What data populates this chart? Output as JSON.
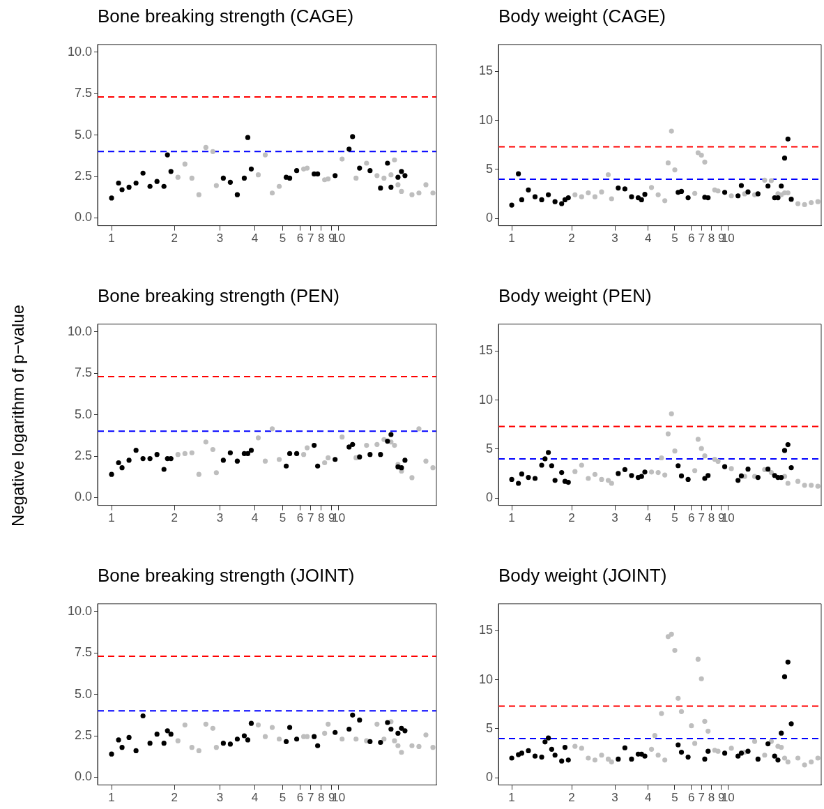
{
  "chart_data": [
    {
      "type": "scatter",
      "title": "Bone breaking strength (CAGE)",
      "ylim": [
        -0.47,
        10.46
      ],
      "categories": [
        null,
        null,
        null,
        null,
        "1",
        null,
        null,
        null,
        null,
        null,
        null,
        null,
        null,
        null,
        null,
        null,
        null,
        null,
        null,
        null,
        null,
        null,
        "2",
        null,
        null,
        null,
        null,
        null,
        null,
        null,
        null,
        null,
        null,
        null,
        null,
        "3",
        null,
        null,
        null,
        null,
        null,
        null,
        null,
        null,
        null,
        "4",
        null,
        null,
        null,
        null,
        null,
        null,
        null,
        "5",
        null,
        null,
        null,
        null,
        "6",
        null,
        null,
        "7",
        null,
        null,
        "8",
        null,
        null,
        "9",
        null,
        "10",
        null,
        null,
        null,
        null,
        null,
        null,
        null,
        null,
        null,
        null,
        null,
        null,
        null,
        null,
        null,
        null,
        null,
        null,
        null,
        null,
        null,
        null,
        null,
        null,
        null,
        null,
        null,
        null
      ],
      "yticks": [
        {
          "value": 0,
          "label": "0.0"
        },
        2.5,
        {
          "value": 5,
          "label": "5.0"
        },
        7.5,
        {
          "value": 10,
          "label": "10.0"
        }
      ],
      "grid": false,
      "legend": false,
      "marker": "circle",
      "ref_lines": [
        {
          "axis": "y",
          "value": 7.3,
          "color": "#ff0000",
          "line_style": "dashed"
        },
        {
          "axis": "y",
          "value": 4,
          "color": "#0000ff",
          "line_style": "dashed"
        }
      ],
      "series": [
        {
          "color": "#000000",
          "values": [
            null,
            null,
            null,
            null,
            1.2,
            null,
            2.1,
            1.7,
            null,
            1.85,
            null,
            2.1,
            null,
            2.7,
            null,
            1.9,
            null,
            2.2,
            null,
            1.9,
            3.8,
            2.8,
            null,
            null,
            null,
            null,
            null,
            null,
            null,
            null,
            null,
            null,
            null,
            null,
            null,
            null,
            2.4,
            null,
            2.15,
            null,
            1.4,
            null,
            2.4,
            4.85,
            2.95,
            null,
            null,
            null,
            null,
            null,
            null,
            null,
            null,
            null,
            2.45,
            2.4,
            null,
            2.85,
            null,
            null,
            null,
            null,
            2.65,
            2.65,
            null,
            null,
            null,
            null,
            2.55,
            null,
            null,
            null,
            4.15,
            4.9,
            null,
            3.0,
            null,
            null,
            2.85,
            null,
            null,
            1.8,
            null,
            3.3,
            1.85,
            null,
            2.45,
            2.8,
            2.55,
            null,
            null,
            null,
            null,
            null,
            null,
            null,
            null,
            null
          ]
        },
        {
          "color": "#bebebe",
          "values": [
            null,
            null,
            null,
            null,
            null,
            null,
            null,
            null,
            null,
            null,
            null,
            null,
            null,
            null,
            null,
            null,
            null,
            null,
            null,
            null,
            null,
            null,
            null,
            2.45,
            null,
            3.25,
            null,
            2.4,
            null,
            1.4,
            null,
            4.25,
            null,
            4.0,
            1.95,
            null,
            null,
            null,
            null,
            null,
            null,
            null,
            null,
            null,
            null,
            null,
            2.6,
            null,
            3.8,
            null,
            1.5,
            null,
            1.9,
            null,
            null,
            null,
            null,
            null,
            null,
            2.95,
            3.0,
            null,
            null,
            null,
            null,
            2.3,
            2.35,
            null,
            null,
            null,
            3.55,
            null,
            null,
            null,
            2.4,
            null,
            null,
            3.3,
            null,
            null,
            2.55,
            null,
            2.4,
            null,
            2.6,
            3.5,
            2.0,
            1.6,
            null,
            null,
            1.4,
            null,
            1.5,
            null,
            2.0,
            null,
            1.5,
            null
          ]
        }
      ]
    },
    {
      "type": "scatter",
      "title": "Body weight (CAGE)",
      "ylim": [
        -0.75,
        17.75
      ],
      "categories": [
        null,
        null,
        null,
        null,
        "1",
        null,
        null,
        null,
        null,
        null,
        null,
        null,
        null,
        null,
        null,
        null,
        null,
        null,
        null,
        null,
        null,
        null,
        "2",
        null,
        null,
        null,
        null,
        null,
        null,
        null,
        null,
        null,
        null,
        null,
        null,
        "3",
        null,
        null,
        null,
        null,
        null,
        null,
        null,
        null,
        null,
        "4",
        null,
        null,
        null,
        null,
        null,
        null,
        null,
        "5",
        null,
        null,
        null,
        null,
        "6",
        null,
        null,
        "7",
        null,
        null,
        "8",
        null,
        null,
        "9",
        null,
        "10",
        null,
        null,
        null,
        null,
        null,
        null,
        null,
        null,
        null,
        null,
        null,
        null,
        null,
        null,
        null,
        null,
        null,
        null,
        null,
        null,
        null,
        null,
        null,
        null,
        null,
        null,
        null,
        null
      ],
      "yticks": [
        0,
        5,
        10,
        15
      ],
      "grid": false,
      "legend": false,
      "marker": "circle",
      "ref_lines": [
        {
          "axis": "y",
          "value": 7.3,
          "color": "#ff0000",
          "line_style": "dashed"
        },
        {
          "axis": "y",
          "value": 4,
          "color": "#0000ff",
          "line_style": "dashed"
        }
      ],
      "series": [
        {
          "color": "#000000",
          "values": [
            null,
            null,
            null,
            null,
            1.35,
            null,
            4.55,
            1.9,
            null,
            2.9,
            null,
            2.2,
            null,
            1.9,
            null,
            2.4,
            null,
            1.7,
            null,
            1.5,
            1.9,
            2.1,
            null,
            null,
            null,
            null,
            null,
            null,
            null,
            null,
            null,
            null,
            null,
            null,
            null,
            null,
            3.1,
            null,
            3.0,
            null,
            2.2,
            null,
            2.1,
            1.9,
            2.45,
            null,
            null,
            null,
            null,
            null,
            null,
            null,
            null,
            null,
            2.65,
            2.75,
            null,
            2.1,
            null,
            null,
            null,
            null,
            2.15,
            2.1,
            null,
            null,
            null,
            null,
            2.65,
            null,
            null,
            null,
            2.3,
            3.35,
            null,
            2.7,
            null,
            null,
            2.5,
            null,
            null,
            3.3,
            null,
            2.1,
            2.1,
            3.3,
            6.15,
            8.1,
            1.95,
            null,
            null,
            null,
            null,
            null,
            null,
            null,
            null,
            null
          ]
        },
        {
          "color": "#bebebe",
          "values": [
            null,
            null,
            null,
            null,
            null,
            null,
            null,
            null,
            null,
            null,
            null,
            null,
            null,
            null,
            null,
            null,
            null,
            null,
            null,
            null,
            null,
            null,
            null,
            2.4,
            null,
            2.2,
            null,
            2.6,
            null,
            2.2,
            null,
            2.7,
            null,
            4.45,
            2.0,
            null,
            null,
            null,
            null,
            null,
            null,
            null,
            null,
            null,
            null,
            null,
            3.15,
            null,
            2.4,
            null,
            1.8,
            5.65,
            8.9,
            4.95,
            null,
            null,
            null,
            null,
            null,
            2.55,
            6.7,
            6.45,
            5.75,
            null,
            null,
            2.9,
            2.8,
            null,
            null,
            null,
            2.3,
            null,
            null,
            null,
            2.5,
            null,
            null,
            2.4,
            null,
            null,
            3.9,
            null,
            3.85,
            null,
            2.5,
            2.4,
            2.6,
            2.6,
            null,
            null,
            1.5,
            null,
            1.4,
            null,
            1.6,
            null,
            1.7,
            null
          ]
        }
      ]
    },
    {
      "type": "scatter",
      "title": "Bone breaking strength (PEN)",
      "ylabel": "Negative logarithm of p−value",
      "ylim": [
        -0.47,
        10.46
      ],
      "categories": [
        null,
        null,
        null,
        null,
        "1",
        null,
        null,
        null,
        null,
        null,
        null,
        null,
        null,
        null,
        null,
        null,
        null,
        null,
        null,
        null,
        null,
        null,
        "2",
        null,
        null,
        null,
        null,
        null,
        null,
        null,
        null,
        null,
        null,
        null,
        null,
        "3",
        null,
        null,
        null,
        null,
        null,
        null,
        null,
        null,
        null,
        "4",
        null,
        null,
        null,
        null,
        null,
        null,
        null,
        "5",
        null,
        null,
        null,
        null,
        "6",
        null,
        null,
        "7",
        null,
        null,
        "8",
        null,
        null,
        "9",
        null,
        "10",
        null,
        null,
        null,
        null,
        null,
        null,
        null,
        null,
        null,
        null,
        null,
        null,
        null,
        null,
        null,
        null,
        null,
        null,
        null,
        null,
        null,
        null,
        null,
        null,
        null,
        null,
        null,
        null
      ],
      "yticks": [
        {
          "value": 0,
          "label": "0.0"
        },
        2.5,
        {
          "value": 5,
          "label": "5.0"
        },
        7.5,
        {
          "value": 10,
          "label": "10.0"
        }
      ],
      "grid": false,
      "legend": false,
      "marker": "circle",
      "ref_lines": [
        {
          "axis": "y",
          "value": 7.3,
          "color": "#ff0000",
          "line_style": "dashed"
        },
        {
          "axis": "y",
          "value": 4,
          "color": "#0000ff",
          "line_style": "dashed"
        }
      ],
      "series": [
        {
          "color": "#000000",
          "values": [
            null,
            null,
            null,
            null,
            1.4,
            null,
            2.1,
            1.8,
            null,
            2.25,
            null,
            2.85,
            null,
            2.35,
            null,
            2.35,
            null,
            2.6,
            null,
            1.7,
            2.35,
            2.35,
            null,
            null,
            null,
            null,
            null,
            null,
            null,
            null,
            null,
            null,
            null,
            null,
            null,
            null,
            2.25,
            null,
            2.7,
            null,
            2.2,
            null,
            2.65,
            2.65,
            2.85,
            null,
            null,
            null,
            null,
            null,
            null,
            null,
            null,
            null,
            1.9,
            2.65,
            null,
            2.65,
            null,
            null,
            null,
            null,
            3.15,
            1.9,
            null,
            null,
            null,
            null,
            2.3,
            null,
            null,
            null,
            3.05,
            3.2,
            null,
            2.45,
            null,
            null,
            2.6,
            null,
            null,
            2.6,
            null,
            3.4,
            3.8,
            null,
            1.85,
            1.8,
            2.25,
            null,
            null,
            null,
            null,
            null,
            null,
            null,
            null,
            null
          ]
        },
        {
          "color": "#bebebe",
          "values": [
            null,
            null,
            null,
            null,
            null,
            null,
            null,
            null,
            null,
            null,
            null,
            null,
            null,
            null,
            null,
            null,
            null,
            null,
            null,
            null,
            null,
            null,
            null,
            2.6,
            null,
            2.65,
            null,
            2.7,
            null,
            1.4,
            null,
            3.35,
            null,
            2.9,
            1.5,
            null,
            null,
            null,
            null,
            null,
            null,
            null,
            null,
            null,
            null,
            null,
            3.6,
            null,
            2.2,
            null,
            4.15,
            null,
            2.3,
            null,
            null,
            null,
            null,
            null,
            null,
            2.6,
            3.0,
            null,
            null,
            null,
            null,
            2.1,
            2.4,
            null,
            null,
            null,
            3.65,
            null,
            null,
            null,
            2.4,
            null,
            null,
            3.15,
            null,
            null,
            3.2,
            null,
            3.5,
            null,
            3.35,
            3.15,
            2.0,
            1.6,
            null,
            null,
            1.2,
            null,
            4.15,
            null,
            2.2,
            null,
            1.8,
            null
          ]
        }
      ]
    },
    {
      "type": "scatter",
      "title": "Body weight (PEN)",
      "ylim": [
        -0.75,
        17.75
      ],
      "categories": [
        null,
        null,
        null,
        null,
        "1",
        null,
        null,
        null,
        null,
        null,
        null,
        null,
        null,
        null,
        null,
        null,
        null,
        null,
        null,
        null,
        null,
        null,
        "2",
        null,
        null,
        null,
        null,
        null,
        null,
        null,
        null,
        null,
        null,
        null,
        null,
        "3",
        null,
        null,
        null,
        null,
        null,
        null,
        null,
        null,
        null,
        "4",
        null,
        null,
        null,
        null,
        null,
        null,
        null,
        "5",
        null,
        null,
        null,
        null,
        "6",
        null,
        null,
        "7",
        null,
        null,
        "8",
        null,
        null,
        "9",
        null,
        "10",
        null,
        null,
        null,
        null,
        null,
        null,
        null,
        null,
        null,
        null,
        null,
        null,
        null,
        null,
        null,
        null,
        null,
        null,
        null,
        null,
        null,
        null,
        null,
        null,
        null,
        null,
        null,
        null
      ],
      "yticks": [
        0,
        5,
        10,
        15
      ],
      "grid": false,
      "legend": false,
      "marker": "circle",
      "ref_lines": [
        {
          "axis": "y",
          "value": 7.3,
          "color": "#ff0000",
          "line_style": "dashed"
        },
        {
          "axis": "y",
          "value": 4,
          "color": "#0000ff",
          "line_style": "dashed"
        }
      ],
      "series": [
        {
          "color": "#000000",
          "values": [
            null,
            null,
            null,
            null,
            1.9,
            null,
            1.5,
            2.45,
            null,
            2.1,
            null,
            2.0,
            null,
            3.35,
            4.0,
            4.65,
            3.3,
            1.8,
            null,
            2.6,
            1.7,
            1.6,
            null,
            null,
            null,
            null,
            null,
            null,
            null,
            null,
            null,
            null,
            null,
            null,
            null,
            null,
            2.5,
            null,
            2.9,
            null,
            2.3,
            null,
            2.1,
            2.2,
            2.65,
            null,
            null,
            null,
            null,
            null,
            null,
            null,
            null,
            null,
            3.3,
            2.25,
            null,
            1.9,
            null,
            null,
            null,
            null,
            2.0,
            2.3,
            null,
            null,
            null,
            null,
            3.2,
            null,
            null,
            null,
            1.8,
            2.25,
            null,
            2.95,
            null,
            null,
            2.1,
            null,
            null,
            2.95,
            null,
            2.3,
            2.1,
            2.1,
            4.85,
            5.45,
            3.1,
            null,
            null,
            null,
            null,
            null,
            null,
            null,
            null,
            null
          ]
        },
        {
          "color": "#bebebe",
          "values": [
            null,
            null,
            null,
            null,
            null,
            null,
            null,
            null,
            null,
            null,
            null,
            null,
            null,
            null,
            null,
            null,
            null,
            null,
            null,
            null,
            null,
            null,
            null,
            2.7,
            null,
            3.35,
            null,
            2.0,
            null,
            2.4,
            null,
            1.9,
            null,
            1.8,
            1.5,
            null,
            null,
            null,
            null,
            null,
            null,
            null,
            null,
            null,
            null,
            null,
            2.65,
            null,
            2.6,
            4.1,
            2.35,
            6.55,
            8.6,
            4.8,
            null,
            null,
            null,
            null,
            null,
            2.8,
            6.0,
            5.05,
            4.3,
            null,
            null,
            3.95,
            3.75,
            null,
            null,
            null,
            3.0,
            null,
            null,
            null,
            2.2,
            null,
            null,
            2.2,
            null,
            null,
            2.9,
            null,
            2.6,
            null,
            null,
            null,
            2.2,
            1.5,
            null,
            null,
            1.7,
            null,
            1.3,
            null,
            1.3,
            null,
            1.2,
            null
          ]
        }
      ]
    },
    {
      "type": "scatter",
      "title": "Bone breaking strength (JOINT)",
      "ylim": [
        -0.47,
        10.46
      ],
      "categories": [
        null,
        null,
        null,
        null,
        "1",
        null,
        null,
        null,
        null,
        null,
        null,
        null,
        null,
        null,
        null,
        null,
        null,
        null,
        null,
        null,
        null,
        null,
        "2",
        null,
        null,
        null,
        null,
        null,
        null,
        null,
        null,
        null,
        null,
        null,
        null,
        "3",
        null,
        null,
        null,
        null,
        null,
        null,
        null,
        null,
        null,
        "4",
        null,
        null,
        null,
        null,
        null,
        null,
        null,
        "5",
        null,
        null,
        null,
        null,
        "6",
        null,
        null,
        "7",
        null,
        null,
        "8",
        null,
        null,
        "9",
        null,
        "10",
        null,
        null,
        null,
        null,
        null,
        null,
        null,
        null,
        null,
        null,
        null,
        null,
        null,
        null,
        null,
        null,
        null,
        null,
        null,
        null,
        null,
        null,
        null,
        null,
        null,
        null,
        null,
        null
      ],
      "yticks": [
        {
          "value": 0,
          "label": "0.0"
        },
        2.5,
        {
          "value": 5,
          "label": "5.0"
        },
        7.5,
        {
          "value": 10,
          "label": "10.0"
        }
      ],
      "grid": false,
      "legend": false,
      "marker": "circle",
      "ref_lines": [
        {
          "axis": "y",
          "value": 7.3,
          "color": "#ff0000",
          "line_style": "dashed"
        },
        {
          "axis": "y",
          "value": 4,
          "color": "#0000ff",
          "line_style": "dashed"
        }
      ],
      "series": [
        {
          "color": "#000000",
          "values": [
            null,
            null,
            null,
            null,
            1.4,
            null,
            2.25,
            1.8,
            null,
            2.4,
            null,
            1.6,
            null,
            3.7,
            null,
            2.05,
            null,
            2.6,
            null,
            2.05,
            2.8,
            2.6,
            null,
            null,
            null,
            null,
            null,
            null,
            null,
            null,
            null,
            null,
            null,
            null,
            null,
            null,
            2.05,
            null,
            2.0,
            null,
            2.3,
            null,
            2.5,
            2.25,
            3.25,
            null,
            null,
            null,
            null,
            null,
            null,
            null,
            null,
            null,
            2.15,
            3.0,
            null,
            2.3,
            null,
            null,
            null,
            null,
            2.45,
            1.9,
            null,
            null,
            null,
            null,
            2.7,
            null,
            null,
            null,
            2.9,
            3.75,
            null,
            3.45,
            null,
            null,
            2.15,
            null,
            null,
            2.1,
            null,
            3.3,
            2.9,
            null,
            2.65,
            2.95,
            2.8,
            null,
            null,
            null,
            null,
            null,
            null,
            null,
            null,
            null
          ]
        },
        {
          "color": "#bebebe",
          "values": [
            null,
            null,
            null,
            null,
            null,
            null,
            null,
            null,
            null,
            null,
            null,
            null,
            null,
            null,
            null,
            null,
            null,
            null,
            null,
            null,
            null,
            null,
            null,
            2.2,
            null,
            3.15,
            null,
            1.8,
            null,
            1.6,
            null,
            3.2,
            null,
            2.95,
            1.8,
            null,
            null,
            null,
            null,
            null,
            null,
            null,
            null,
            null,
            null,
            null,
            3.15,
            null,
            2.45,
            null,
            3.0,
            null,
            2.3,
            null,
            null,
            null,
            null,
            null,
            null,
            2.45,
            2.45,
            null,
            null,
            null,
            null,
            2.65,
            3.2,
            null,
            null,
            null,
            2.3,
            null,
            null,
            null,
            2.3,
            null,
            null,
            2.2,
            null,
            null,
            3.2,
            null,
            2.3,
            null,
            3.35,
            2.2,
            1.9,
            1.5,
            null,
            null,
            1.9,
            null,
            1.85,
            null,
            2.55,
            null,
            1.8,
            null
          ]
        }
      ]
    },
    {
      "type": "scatter",
      "title": "Body weight (JOINT)",
      "ylim": [
        -0.75,
        17.75
      ],
      "categories": [
        null,
        null,
        null,
        null,
        "1",
        null,
        null,
        null,
        null,
        null,
        null,
        null,
        null,
        null,
        null,
        null,
        null,
        null,
        null,
        null,
        null,
        null,
        "2",
        null,
        null,
        null,
        null,
        null,
        null,
        null,
        null,
        null,
        null,
        null,
        null,
        "3",
        null,
        null,
        null,
        null,
        null,
        null,
        null,
        null,
        null,
        "4",
        null,
        null,
        null,
        null,
        null,
        null,
        null,
        "5",
        null,
        null,
        null,
        null,
        "6",
        null,
        null,
        "7",
        null,
        null,
        "8",
        null,
        null,
        "9",
        null,
        "10",
        null,
        null,
        null,
        null,
        null,
        null,
        null,
        null,
        null,
        null,
        null,
        null,
        null,
        null,
        null,
        null,
        null,
        null,
        null,
        null,
        null,
        null,
        null,
        null,
        null,
        null,
        null,
        null
      ],
      "yticks": [
        0,
        5,
        10,
        15
      ],
      "grid": false,
      "legend": false,
      "marker": "circle",
      "ref_lines": [
        {
          "axis": "y",
          "value": 7.3,
          "color": "#ff0000",
          "line_style": "dashed"
        },
        {
          "axis": "y",
          "value": 4,
          "color": "#0000ff",
          "line_style": "dashed"
        }
      ],
      "series": [
        {
          "color": "#000000",
          "values": [
            null,
            null,
            null,
            null,
            2.0,
            null,
            2.35,
            2.5,
            null,
            2.75,
            null,
            2.2,
            null,
            2.1,
            3.65,
            4.05,
            2.9,
            2.3,
            null,
            1.7,
            3.1,
            1.8,
            null,
            null,
            null,
            null,
            null,
            null,
            null,
            null,
            null,
            null,
            null,
            null,
            null,
            null,
            1.9,
            null,
            3.05,
            null,
            1.9,
            null,
            2.4,
            2.4,
            2.2,
            null,
            null,
            null,
            null,
            null,
            null,
            null,
            null,
            null,
            3.35,
            2.6,
            null,
            2.1,
            null,
            null,
            null,
            null,
            1.9,
            2.7,
            null,
            null,
            null,
            null,
            2.5,
            null,
            null,
            null,
            2.2,
            2.5,
            null,
            2.7,
            null,
            null,
            1.9,
            null,
            null,
            3.45,
            null,
            2.2,
            1.8,
            4.55,
            10.3,
            11.8,
            5.5,
            null,
            null,
            null,
            null,
            null,
            null,
            null,
            null,
            null
          ]
        },
        {
          "color": "#bebebe",
          "values": [
            null,
            null,
            null,
            null,
            null,
            null,
            null,
            null,
            null,
            null,
            null,
            null,
            null,
            null,
            null,
            null,
            null,
            null,
            null,
            null,
            null,
            null,
            null,
            3.2,
            null,
            3.0,
            null,
            2.0,
            null,
            1.8,
            null,
            2.3,
            null,
            1.9,
            1.6,
            null,
            null,
            null,
            null,
            null,
            null,
            null,
            null,
            null,
            null,
            null,
            2.9,
            4.3,
            2.3,
            6.55,
            1.8,
            14.4,
            14.65,
            13.0,
            8.1,
            6.75,
            null,
            null,
            5.3,
            3.5,
            12.1,
            10.1,
            5.75,
            4.75,
            null,
            2.8,
            2.7,
            null,
            null,
            null,
            3.0,
            null,
            null,
            null,
            2.6,
            null,
            null,
            3.7,
            null,
            null,
            2.3,
            null,
            3.7,
            null,
            3.2,
            3.1,
            2.0,
            1.6,
            null,
            null,
            2.0,
            null,
            1.3,
            null,
            1.6,
            null,
            2.0,
            null
          ]
        }
      ]
    }
  ]
}
